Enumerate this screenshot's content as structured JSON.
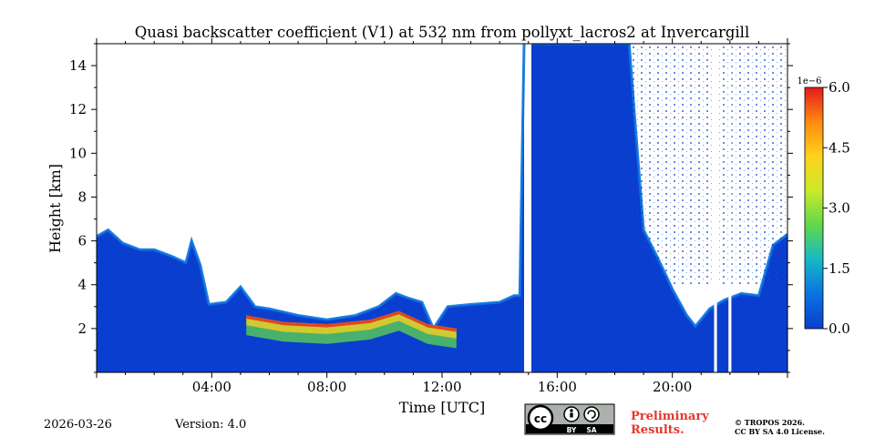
{
  "chart_data": {
    "type": "heatmap",
    "title": "Quasi backscatter coefficient (V1) at 532 nm from pollyxt_lacros2 at Invercargill",
    "xlabel": "Time [UTC]",
    "ylabel": "Height [km]",
    "xlim_hours": [
      0,
      24
    ],
    "ylim_km": [
      0,
      15
    ],
    "x_ticks_hours": [
      4,
      8,
      12,
      16,
      20
    ],
    "x_tick_labels": [
      "04:00",
      "08:00",
      "12:00",
      "16:00",
      "20:00"
    ],
    "y_ticks": [
      2,
      4,
      6,
      8,
      10,
      12,
      14
    ],
    "y_tick_labels": [
      "2",
      "4",
      "6",
      "8",
      "10",
      "12",
      "14"
    ],
    "colorbar": {
      "min": 0.0,
      "max": 6.0,
      "scale_label": "1e−6",
      "ticks": [
        0.0,
        1.5,
        3.0,
        4.5,
        6.0
      ],
      "tick_labels": [
        "0.0",
        "1.5",
        "3.0",
        "4.5",
        "6.0"
      ],
      "colors": [
        "#0a3ecf",
        "#0a72e0",
        "#17b8c6",
        "#5fd84a",
        "#c9ea2a",
        "#ffd21c",
        "#ff8a10",
        "#e31a1c"
      ]
    },
    "signal_top_profile_km": [
      [
        0.0,
        6.2
      ],
      [
        0.4,
        6.5
      ],
      [
        0.9,
        5.9
      ],
      [
        1.5,
        5.6
      ],
      [
        2.0,
        5.6
      ],
      [
        2.6,
        5.3
      ],
      [
        3.1,
        5.0
      ],
      [
        3.3,
        6.0
      ],
      [
        3.6,
        4.9
      ],
      [
        3.9,
        3.1
      ],
      [
        4.5,
        3.2
      ],
      [
        5.0,
        3.9
      ],
      [
        5.5,
        3.0
      ],
      [
        6.0,
        2.9
      ],
      [
        7.0,
        2.6
      ],
      [
        8.0,
        2.4
      ],
      [
        9.0,
        2.6
      ],
      [
        9.8,
        3.0
      ],
      [
        10.4,
        3.6
      ],
      [
        10.8,
        3.4
      ],
      [
        11.3,
        3.2
      ],
      [
        11.7,
        2.0
      ],
      [
        12.2,
        3.0
      ],
      [
        13.0,
        3.1
      ],
      [
        14.0,
        3.2
      ],
      [
        14.5,
        3.5
      ],
      [
        14.7,
        3.5
      ],
      [
        14.85,
        15.0
      ]
    ],
    "signal_top_profile_km_2": [
      [
        15.1,
        15.0
      ],
      [
        18.5,
        15.0
      ],
      [
        18.7,
        11.5
      ],
      [
        19.0,
        6.5
      ],
      [
        19.5,
        5.2
      ],
      [
        20.0,
        3.8
      ],
      [
        20.5,
        2.6
      ],
      [
        20.8,
        2.1
      ],
      [
        21.3,
        2.9
      ],
      [
        21.8,
        3.3
      ],
      [
        22.4,
        3.6
      ],
      [
        23.0,
        3.5
      ],
      [
        23.5,
        5.8
      ],
      [
        24.0,
        6.3
      ]
    ],
    "data_gaps_hours": [
      [
        14.9,
        15.1
      ],
      [
        21.45,
        21.55
      ],
      [
        21.95,
        22.05
      ]
    ],
    "sparse_noise_region_hours": [
      [
        18.6,
        24.0
      ]
    ]
  },
  "footer": {
    "date": "2026-03-26",
    "version": "Version: 4.0",
    "license_badge": {
      "by": "BY",
      "sa": "SA"
    },
    "preliminary_line1": "Preliminary",
    "preliminary_line2": "Results.",
    "copyright_line1": "© TROPOS 2026.",
    "copyright_line2": "CC BY SA 4.0 License."
  }
}
